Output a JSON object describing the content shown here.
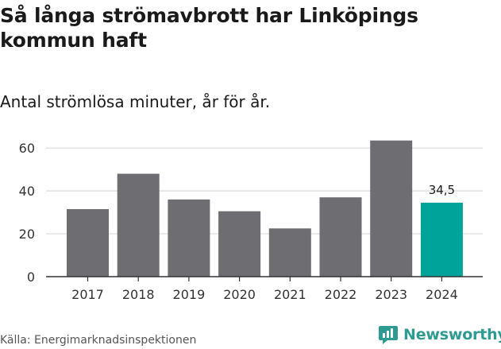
{
  "title": "Så långa strömavbrott har Linköpings kommun haft",
  "subtitle": "Antal strömlösa minuter, år för år.",
  "source": "Källa: Energimarknadsinspektionen",
  "brand": {
    "name": "Newsworthy",
    "icon": "newsworthy-logo-icon",
    "color": "#2e9b92"
  },
  "chart_data": {
    "type": "bar",
    "categories": [
      "2017",
      "2018",
      "2019",
      "2020",
      "2021",
      "2022",
      "2023",
      "2024"
    ],
    "values": [
      31.5,
      48,
      36,
      30.5,
      22.5,
      37,
      63.5,
      34.5
    ],
    "highlight_index": 7,
    "data_labels": [
      {
        "index": 7,
        "text": "34,5"
      }
    ],
    "y_ticks": [
      0,
      20,
      40,
      60
    ],
    "ylim": [
      0,
      66
    ],
    "grid": true,
    "legend": "none",
    "colors": {
      "bar": "#6e6d72",
      "highlight": "#00a39a",
      "grid": "#d9d9d9",
      "axis": "#333333"
    }
  }
}
